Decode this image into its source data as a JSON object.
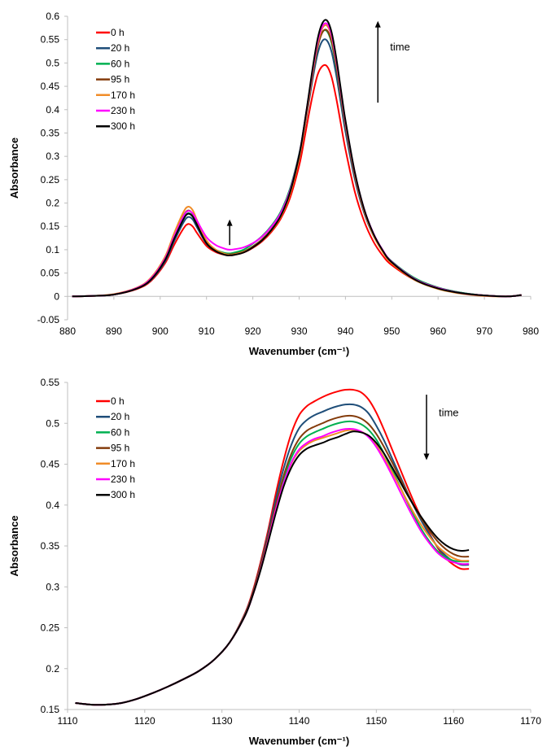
{
  "chart_data": [
    {
      "type": "line",
      "xlabel": "Wavenumber (cm⁻¹)",
      "ylabel": "Absorbance",
      "xlim": [
        880,
        980
      ],
      "ylim": [
        -0.05,
        0.6
      ],
      "xticks": [
        880,
        890,
        900,
        910,
        920,
        930,
        940,
        950,
        960,
        970,
        980
      ],
      "xtick_labels": [
        "880",
        "890",
        "900",
        "910",
        "920",
        "930",
        "940",
        "950",
        "960",
        "970",
        "980"
      ],
      "yticks": [
        -0.05,
        0,
        0.05,
        0.1,
        0.15,
        0.2,
        0.25,
        0.3,
        0.35,
        0.4,
        0.45,
        0.5,
        0.55,
        0.6
      ],
      "ytick_labels": [
        "-0.05",
        "0",
        "0.05",
        "0.1",
        "0.15",
        "0.2",
        "0.25",
        "0.3",
        "0.35",
        "0.4",
        "0.45",
        "0.5",
        "0.55",
        "0.6"
      ],
      "grid": false,
      "legend_position": "top-left",
      "annotations": [
        {
          "text": "time",
          "arrow": "up",
          "near_x": 947,
          "y_from": 0.415,
          "y_to": 0.59
        },
        {
          "text": "",
          "arrow": "up",
          "near_x": 915,
          "y_from": 0.11,
          "y_to": 0.165
        }
      ],
      "x": [
        881,
        885,
        890,
        895,
        898,
        901,
        903,
        905,
        906,
        907,
        908,
        910,
        912,
        914,
        915,
        916,
        918,
        920,
        922,
        924,
        926,
        928,
        930,
        931,
        932,
        933,
        934,
        935,
        936,
        937,
        938,
        939,
        940,
        942,
        944,
        946,
        948,
        950,
        955,
        960,
        965,
        970,
        975,
        978
      ],
      "series": [
        {
          "name": "0 h",
          "color": "#ff0000",
          "values": [
            0.0,
            0.001,
            0.004,
            0.016,
            0.033,
            0.07,
            0.11,
            0.145,
            0.155,
            0.15,
            0.135,
            0.108,
            0.095,
            0.089,
            0.088,
            0.089,
            0.094,
            0.104,
            0.118,
            0.138,
            0.166,
            0.21,
            0.28,
            0.33,
            0.385,
            0.435,
            0.475,
            0.493,
            0.493,
            0.47,
            0.425,
            0.37,
            0.315,
            0.225,
            0.162,
            0.118,
            0.088,
            0.067,
            0.035,
            0.017,
            0.007,
            0.002,
            0.0,
            0.003
          ]
        },
        {
          "name": "20 h",
          "color": "#1f4e79",
          "values": [
            0.0,
            0.001,
            0.004,
            0.017,
            0.035,
            0.074,
            0.118,
            0.158,
            0.17,
            0.165,
            0.147,
            0.113,
            0.097,
            0.09,
            0.089,
            0.09,
            0.096,
            0.107,
            0.122,
            0.143,
            0.172,
            0.22,
            0.295,
            0.35,
            0.41,
            0.47,
            0.52,
            0.547,
            0.548,
            0.524,
            0.475,
            0.414,
            0.353,
            0.252,
            0.18,
            0.131,
            0.097,
            0.073,
            0.038,
            0.019,
            0.008,
            0.002,
            0.0,
            0.003
          ]
        },
        {
          "name": "60 h",
          "color": "#00b050",
          "values": [
            0.0,
            0.001,
            0.004,
            0.018,
            0.037,
            0.078,
            0.124,
            0.166,
            0.178,
            0.172,
            0.153,
            0.117,
            0.1,
            0.093,
            0.092,
            0.094,
            0.1,
            0.113,
            0.129,
            0.151,
            0.181,
            0.23,
            0.305,
            0.36,
            0.422,
            0.485,
            0.537,
            0.566,
            0.568,
            0.543,
            0.492,
            0.428,
            0.365,
            0.26,
            0.185,
            0.134,
            0.099,
            0.075,
            0.039,
            0.019,
            0.008,
            0.002,
            0.0,
            0.003
          ]
        },
        {
          "name": "95 h",
          "color": "#843c0c",
          "values": [
            0.0,
            0.001,
            0.004,
            0.018,
            0.038,
            0.08,
            0.128,
            0.172,
            0.184,
            0.177,
            0.156,
            0.117,
            0.099,
            0.091,
            0.09,
            0.091,
            0.096,
            0.107,
            0.122,
            0.143,
            0.172,
            0.22,
            0.297,
            0.352,
            0.415,
            0.48,
            0.534,
            0.565,
            0.57,
            0.546,
            0.495,
            0.43,
            0.366,
            0.26,
            0.184,
            0.133,
            0.098,
            0.073,
            0.037,
            0.018,
            0.007,
            0.002,
            0.0,
            0.003
          ]
        },
        {
          "name": "170 h",
          "color": "#f08c28",
          "values": [
            0.0,
            0.001,
            0.005,
            0.019,
            0.04,
            0.084,
            0.135,
            0.18,
            0.192,
            0.185,
            0.162,
            0.12,
            0.1,
            0.091,
            0.089,
            0.09,
            0.095,
            0.105,
            0.12,
            0.141,
            0.17,
            0.218,
            0.296,
            0.353,
            0.418,
            0.485,
            0.541,
            0.574,
            0.58,
            0.556,
            0.503,
            0.437,
            0.371,
            0.263,
            0.185,
            0.132,
            0.096,
            0.071,
            0.035,
            0.016,
            0.006,
            0.001,
            0.0,
            0.003
          ]
        },
        {
          "name": "230 h",
          "color": "#ff00ff",
          "values": [
            0.0,
            0.001,
            0.004,
            0.018,
            0.038,
            0.08,
            0.128,
            0.171,
            0.183,
            0.178,
            0.161,
            0.127,
            0.11,
            0.102,
            0.1,
            0.101,
            0.105,
            0.114,
            0.128,
            0.149,
            0.178,
            0.226,
            0.303,
            0.36,
            0.424,
            0.49,
            0.546,
            0.578,
            0.584,
            0.56,
            0.507,
            0.44,
            0.374,
            0.266,
            0.188,
            0.136,
            0.1,
            0.074,
            0.037,
            0.018,
            0.007,
            0.002,
            0.0,
            0.003
          ]
        },
        {
          "name": "300 h",
          "color": "#000000",
          "values": [
            0.0,
            0.001,
            0.004,
            0.017,
            0.036,
            0.077,
            0.123,
            0.165,
            0.177,
            0.171,
            0.152,
            0.114,
            0.097,
            0.089,
            0.088,
            0.089,
            0.094,
            0.105,
            0.12,
            0.142,
            0.172,
            0.222,
            0.302,
            0.36,
            0.426,
            0.494,
            0.552,
            0.585,
            0.591,
            0.566,
            0.512,
            0.444,
            0.377,
            0.267,
            0.188,
            0.135,
            0.099,
            0.073,
            0.036,
            0.017,
            0.007,
            0.002,
            0.0,
            0.003
          ]
        }
      ]
    },
    {
      "type": "line",
      "xlabel": "Wavenumber (cm⁻¹)",
      "ylabel": "Absorbance",
      "xlim": [
        1110,
        1170
      ],
      "ylim": [
        0.15,
        0.55
      ],
      "xticks": [
        1110,
        1120,
        1130,
        1140,
        1150,
        1160,
        1170
      ],
      "xtick_labels": [
        "1110",
        "1120",
        "1130",
        "1140",
        "1150",
        "1160",
        "1170"
      ],
      "yticks": [
        0.15,
        0.2,
        0.25,
        0.3,
        0.35,
        0.4,
        0.45,
        0.5,
        0.55
      ],
      "ytick_labels": [
        "0.15",
        "0.2",
        "0.25",
        "0.3",
        "0.35",
        "0.4",
        "0.45",
        "0.5",
        "0.55"
      ],
      "grid": false,
      "legend_position": "top-left",
      "annotations": [
        {
          "text": "time",
          "arrow": "down",
          "near_x": 1156.5,
          "y_from": 0.535,
          "y_to": 0.455
        }
      ],
      "x": [
        1111,
        1113,
        1115,
        1117,
        1119,
        1121,
        1123,
        1125,
        1127,
        1129,
        1131,
        1133,
        1134,
        1135,
        1136,
        1137,
        1138,
        1139,
        1140,
        1141,
        1142,
        1143,
        1144,
        1145,
        1146,
        1147,
        1148,
        1149,
        1150,
        1151,
        1152,
        1153,
        1154,
        1155,
        1156,
        1157,
        1158,
        1159,
        1160,
        1161,
        1162
      ],
      "series": [
        {
          "name": "0 h",
          "color": "#ff0000",
          "values": [
            0.158,
            0.156,
            0.156,
            0.158,
            0.163,
            0.17,
            0.178,
            0.187,
            0.197,
            0.211,
            0.232,
            0.268,
            0.295,
            0.33,
            0.37,
            0.415,
            0.455,
            0.488,
            0.51,
            0.521,
            0.527,
            0.532,
            0.536,
            0.539,
            0.541,
            0.541,
            0.538,
            0.529,
            0.513,
            0.492,
            0.469,
            0.446,
            0.423,
            0.401,
            0.381,
            0.363,
            0.347,
            0.335,
            0.327,
            0.322,
            0.322
          ]
        },
        {
          "name": "20 h",
          "color": "#1f4e79",
          "values": [
            0.158,
            0.156,
            0.156,
            0.158,
            0.163,
            0.17,
            0.178,
            0.187,
            0.197,
            0.211,
            0.232,
            0.267,
            0.293,
            0.327,
            0.366,
            0.408,
            0.445,
            0.474,
            0.494,
            0.504,
            0.51,
            0.514,
            0.518,
            0.521,
            0.523,
            0.523,
            0.52,
            0.512,
            0.497,
            0.479,
            0.458,
            0.437,
            0.416,
            0.396,
            0.378,
            0.362,
            0.348,
            0.338,
            0.331,
            0.327,
            0.327
          ]
        },
        {
          "name": "60 h",
          "color": "#00b050",
          "values": [
            0.158,
            0.156,
            0.156,
            0.158,
            0.163,
            0.17,
            0.178,
            0.187,
            0.197,
            0.211,
            0.232,
            0.266,
            0.291,
            0.323,
            0.36,
            0.399,
            0.432,
            0.458,
            0.475,
            0.484,
            0.489,
            0.493,
            0.497,
            0.5,
            0.502,
            0.502,
            0.499,
            0.492,
            0.48,
            0.463,
            0.444,
            0.424,
            0.404,
            0.385,
            0.368,
            0.354,
            0.343,
            0.336,
            0.332,
            0.331,
            0.331
          ]
        },
        {
          "name": "95 h",
          "color": "#843c0c",
          "values": [
            0.158,
            0.156,
            0.156,
            0.158,
            0.163,
            0.17,
            0.178,
            0.187,
            0.197,
            0.211,
            0.232,
            0.266,
            0.292,
            0.325,
            0.362,
            0.401,
            0.436,
            0.463,
            0.481,
            0.491,
            0.496,
            0.5,
            0.504,
            0.507,
            0.509,
            0.509,
            0.506,
            0.499,
            0.487,
            0.471,
            0.453,
            0.434,
            0.415,
            0.397,
            0.381,
            0.367,
            0.355,
            0.346,
            0.34,
            0.337,
            0.337
          ]
        },
        {
          "name": "170 h",
          "color": "#f08c28",
          "values": [
            0.158,
            0.156,
            0.156,
            0.158,
            0.163,
            0.17,
            0.178,
            0.187,
            0.197,
            0.211,
            0.232,
            0.265,
            0.29,
            0.321,
            0.357,
            0.395,
            0.426,
            0.451,
            0.466,
            0.474,
            0.479,
            0.482,
            0.485,
            0.488,
            0.491,
            0.492,
            0.49,
            0.484,
            0.473,
            0.458,
            0.441,
            0.423,
            0.405,
            0.388,
            0.373,
            0.36,
            0.349,
            0.341,
            0.335,
            0.332,
            0.332
          ]
        },
        {
          "name": "230 h",
          "color": "#ff00ff",
          "values": [
            0.158,
            0.156,
            0.156,
            0.158,
            0.163,
            0.17,
            0.178,
            0.187,
            0.197,
            0.211,
            0.232,
            0.265,
            0.29,
            0.321,
            0.357,
            0.395,
            0.427,
            0.452,
            0.468,
            0.476,
            0.481,
            0.484,
            0.488,
            0.491,
            0.493,
            0.493,
            0.49,
            0.483,
            0.471,
            0.455,
            0.437,
            0.418,
            0.399,
            0.381,
            0.365,
            0.352,
            0.341,
            0.334,
            0.33,
            0.328,
            0.328
          ]
        },
        {
          "name": "300 h",
          "color": "#000000",
          "values": [
            0.158,
            0.156,
            0.156,
            0.158,
            0.163,
            0.17,
            0.178,
            0.187,
            0.197,
            0.211,
            0.232,
            0.265,
            0.29,
            0.32,
            0.355,
            0.391,
            0.423,
            0.446,
            0.461,
            0.469,
            0.473,
            0.476,
            0.48,
            0.483,
            0.487,
            0.49,
            0.489,
            0.485,
            0.476,
            0.463,
            0.447,
            0.43,
            0.413,
            0.397,
            0.383,
            0.37,
            0.359,
            0.351,
            0.346,
            0.344,
            0.345
          ]
        }
      ]
    }
  ]
}
